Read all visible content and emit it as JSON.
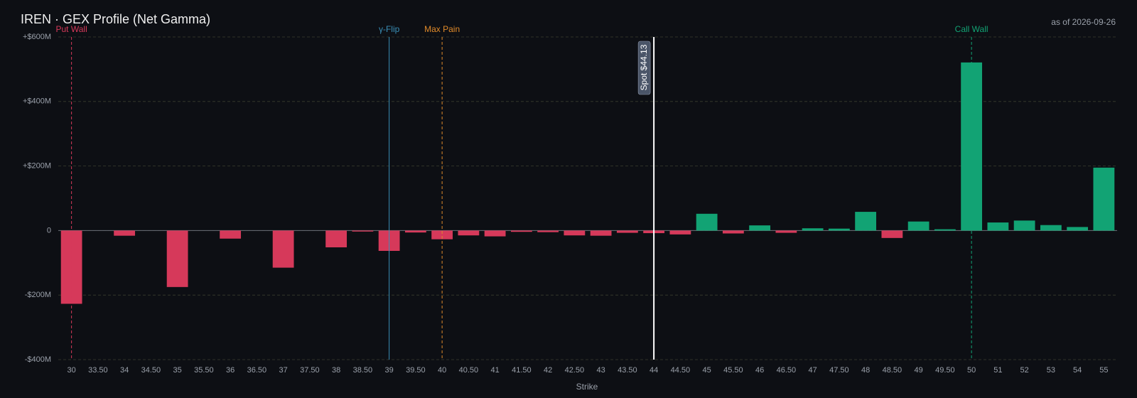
{
  "chart_data": {
    "type": "bar",
    "title": "IREN · GEX Profile (Net Gamma)",
    "subtitle": "as of 2026-09-26",
    "x_label": "Strike",
    "categories": [
      "30",
      "33.50",
      "34",
      "34.50",
      "35",
      "35.50",
      "36",
      "36.50",
      "37",
      "37.50",
      "38",
      "38.50",
      "39",
      "39.50",
      "40",
      "40.50",
      "41",
      "41.50",
      "42",
      "42.50",
      "43",
      "43.50",
      "44",
      "44.50",
      "45",
      "45.50",
      "46",
      "46.50",
      "47",
      "47.50",
      "48",
      "48.50",
      "49",
      "49.50",
      "50",
      "51",
      "52",
      "53",
      "54",
      "55"
    ],
    "values": [
      -227,
      0,
      -16,
      0,
      -175,
      0,
      -25,
      0,
      -115,
      0,
      -52,
      -3,
      -63,
      -6,
      -27,
      -15,
      -18,
      -4,
      -5,
      -15,
      -16,
      -7,
      -8,
      -12,
      52,
      -9,
      16,
      -7,
      7,
      6,
      58,
      -23,
      28,
      4,
      521,
      25,
      31,
      17,
      11,
      195
    ],
    "positive_color": "#12a374",
    "negative_color": "#d6395a",
    "ylim": [
      -400,
      600
    ],
    "yticks": [
      {
        "value": -400,
        "label": "-$400M"
      },
      {
        "value": -200,
        "label": "-$200M"
      },
      0,
      {
        "value": 200,
        "label": "+$200M"
      },
      {
        "value": 400,
        "label": "+$400M"
      },
      {
        "value": 600,
        "label": "+$600M"
      }
    ],
    "grid": true,
    "markers": [
      {
        "label": "Put Wall",
        "at": "30",
        "color": "#d6395a",
        "dashed": true
      },
      {
        "label": "γ-Flip",
        "at": "39",
        "color": "#3a8fb7",
        "dashed": false
      },
      {
        "label": "Max Pain",
        "at": "40",
        "color": "#e08a2a",
        "dashed": true
      },
      {
        "label": "Call Wall",
        "at": "50",
        "color": "#12a374",
        "dashed": true
      }
    ],
    "spot": {
      "label": "Spot $44.13",
      "at": "44",
      "color": "#ffffff"
    }
  }
}
